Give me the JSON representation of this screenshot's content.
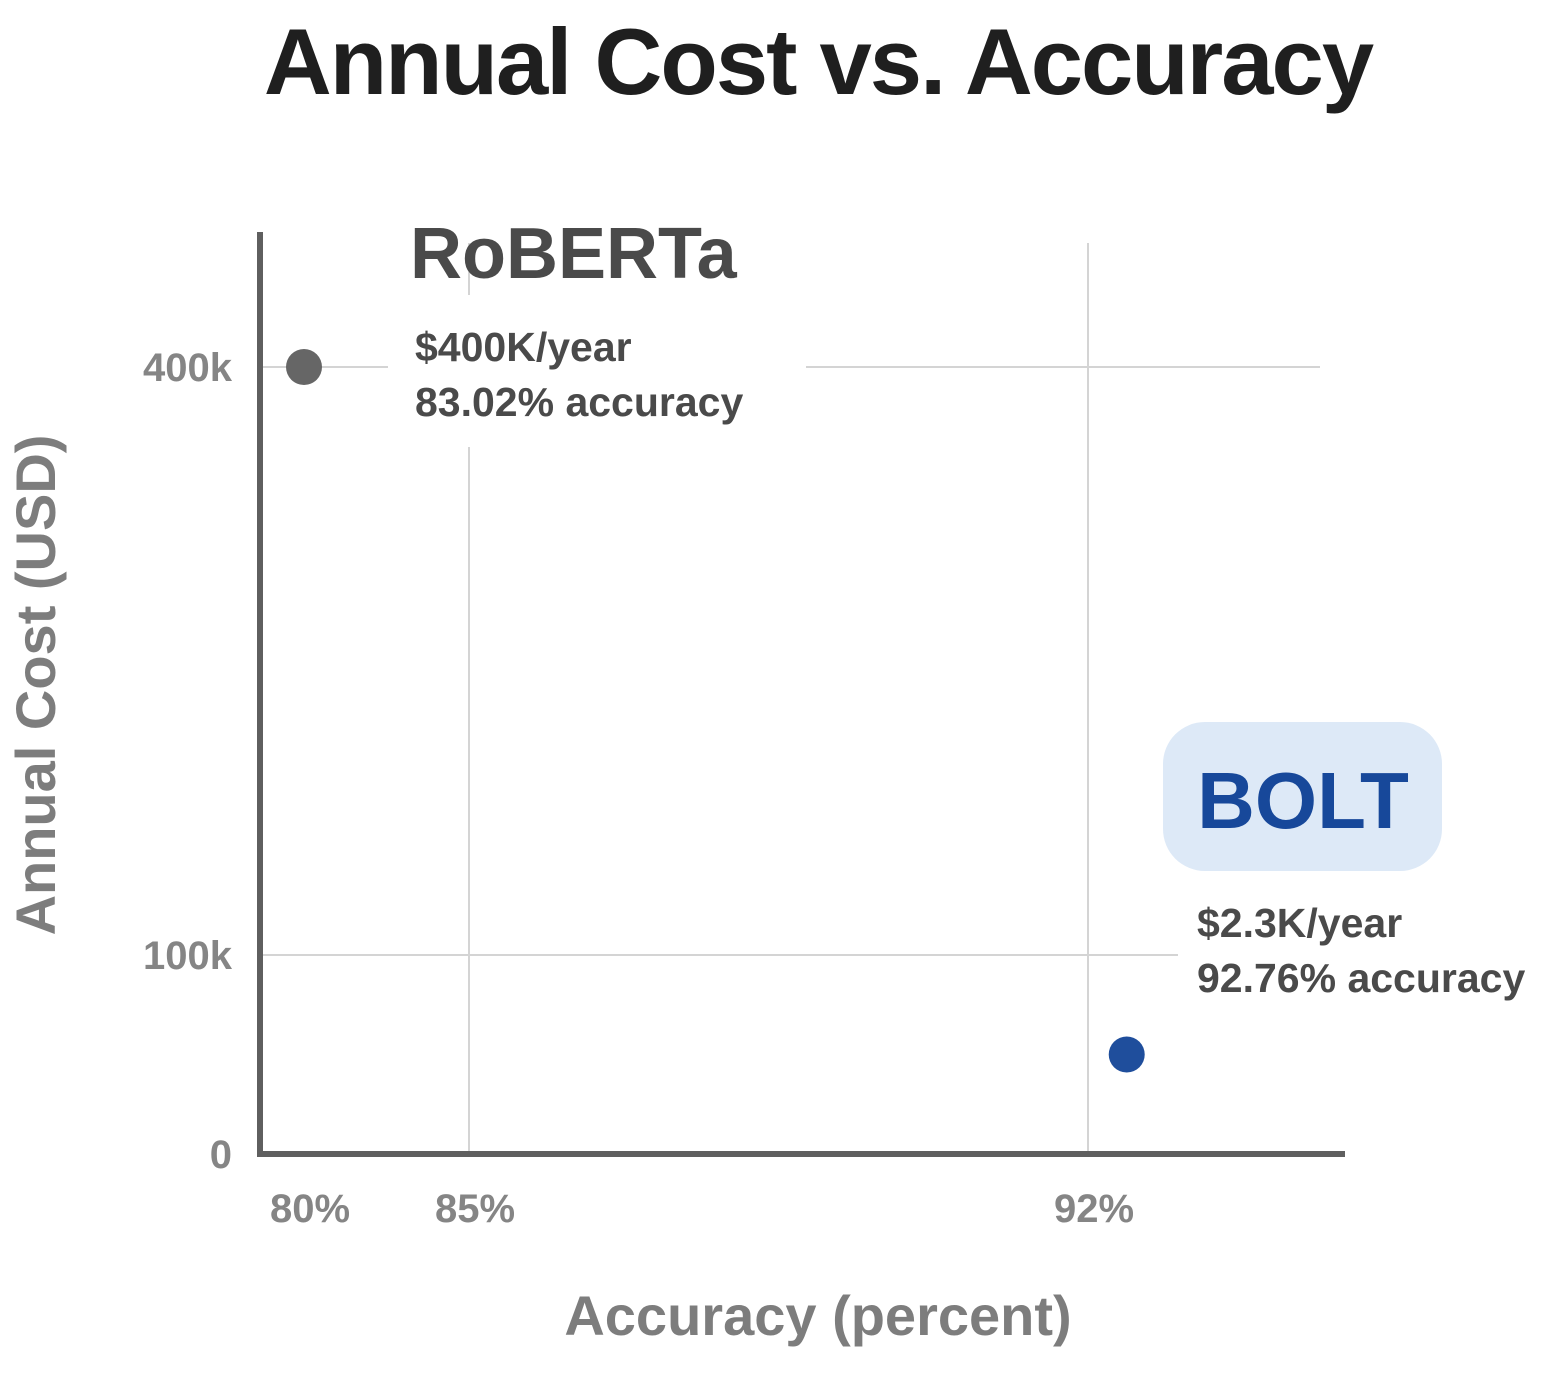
{
  "chart_data": {
    "type": "scatter",
    "title": "Annual Cost vs. Accuracy",
    "xlabel": "Accuracy (percent)",
    "ylabel": "Annual Cost (USD)",
    "x_ticks": [
      {
        "value": 80,
        "label": "80%"
      },
      {
        "value": 85,
        "label": "85%"
      },
      {
        "value": 92,
        "label": "92%"
      }
    ],
    "y_ticks": [
      {
        "value": 0,
        "label": "0"
      },
      {
        "value": 100000,
        "label": "100k"
      },
      {
        "value": 400000,
        "label": "400k"
      }
    ],
    "grid": true,
    "series": [
      {
        "name": "RoBERTa",
        "color": "#666666",
        "points": [
          {
            "x": 83.02,
            "y": 400000
          }
        ],
        "annotation": [
          "$400K/year",
          "83.02% accuracy"
        ]
      },
      {
        "name": "BOLT",
        "color": "#1f4e9c",
        "label_background": "#dde9f7",
        "points": [
          {
            "x": 92.76,
            "y": 2300
          }
        ],
        "annotation": [
          "$2.3K/year",
          "92.76% accuracy"
        ]
      }
    ]
  }
}
